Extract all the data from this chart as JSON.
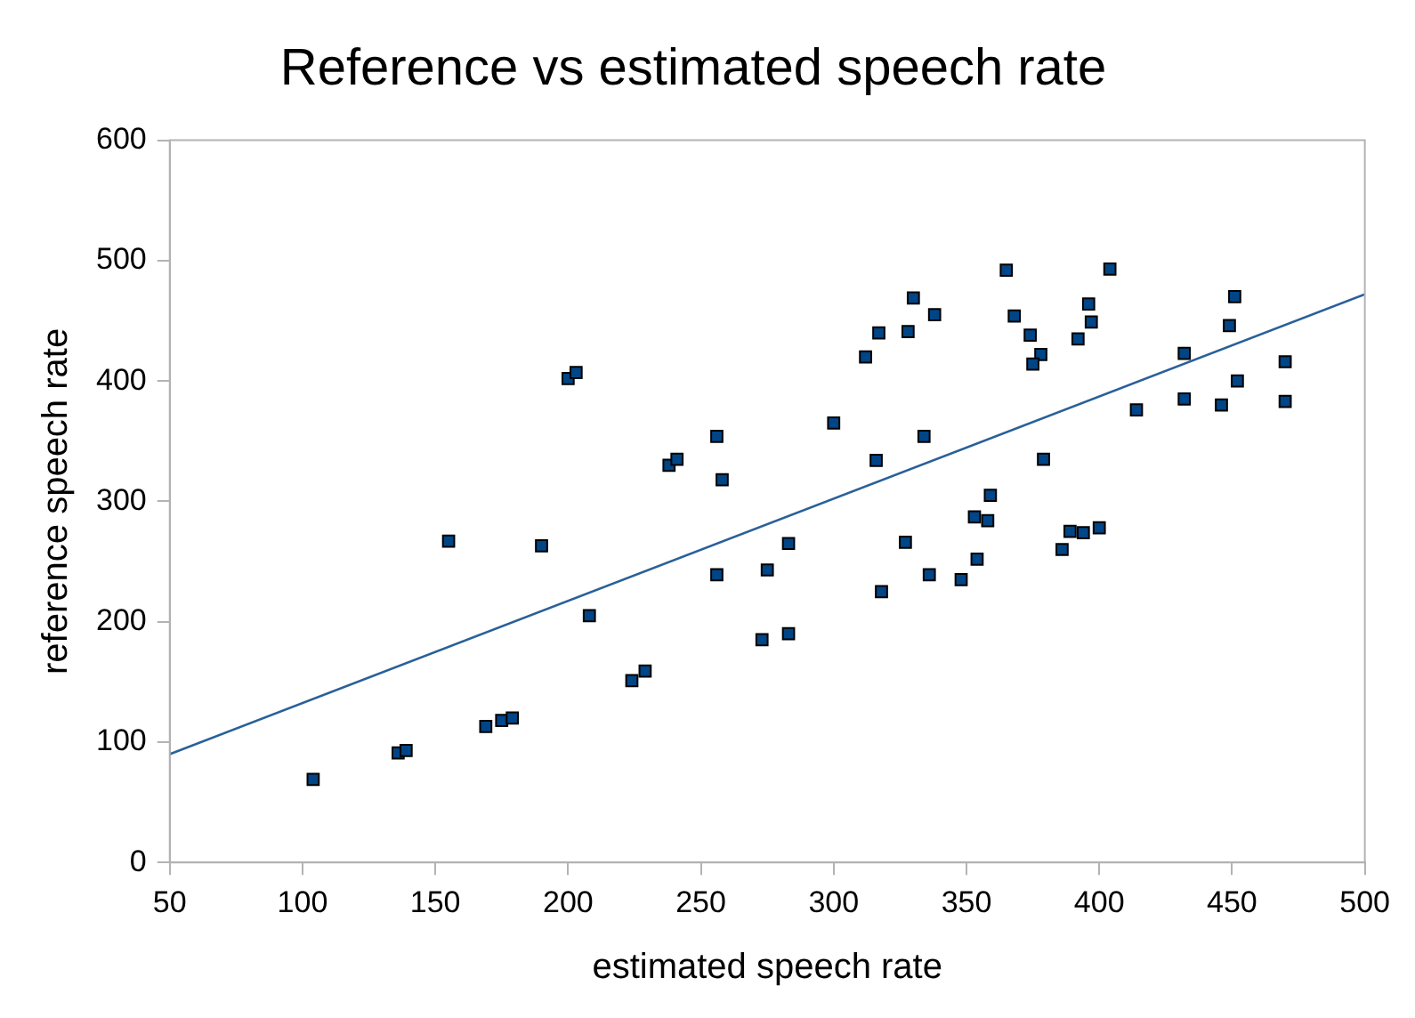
{
  "chart_data": {
    "type": "scatter",
    "title": "Reference vs estimated speech rate",
    "xlabel": "estimated speech rate",
    "ylabel": "reference speech rate",
    "xlim": [
      50,
      500
    ],
    "xticks": [
      50,
      100,
      150,
      200,
      250,
      300,
      350,
      400,
      450,
      500
    ],
    "ylim": [
      0,
      600
    ],
    "yticks": [
      0,
      100,
      200,
      300,
      400,
      500,
      600
    ],
    "grid": false,
    "legend": false,
    "marker": "square",
    "series": [
      {
        "color": "#004586",
        "x": [
          104,
          136,
          139,
          155,
          169,
          175,
          179,
          190,
          208,
          224,
          229,
          238,
          241,
          258,
          256,
          275,
          273,
          200,
          203,
          256,
          300,
          316,
          334,
          312,
          317,
          330,
          328,
          338,
          365,
          368,
          374,
          378,
          375,
          359,
          379,
          404,
          396,
          397,
          392,
          414,
          432,
          432,
          446,
          451,
          449,
          452,
          470,
          470,
          283,
          283,
          318,
          327,
          336,
          348,
          354,
          353,
          358,
          386,
          389,
          394,
          400
        ],
        "values": [
          69,
          91,
          93,
          267,
          113,
          118,
          120,
          263,
          205,
          151,
          159,
          330,
          335,
          318,
          239,
          243,
          185,
          402,
          407,
          354,
          365,
          334,
          354,
          420,
          440,
          469,
          441,
          455,
          492,
          454,
          438,
          422,
          414,
          305,
          335,
          493,
          464,
          449,
          435,
          376,
          423,
          385,
          380,
          470,
          446,
          400,
          416,
          383,
          190,
          265,
          225,
          266,
          239,
          235,
          252,
          287,
          284,
          260,
          275,
          274,
          278
        ]
      },
      {
        "type": "line",
        "color": "#2a6099",
        "marker": "none",
        "x": [
          50,
          500
        ],
        "values": [
          90,
          472
        ]
      }
    ]
  }
}
